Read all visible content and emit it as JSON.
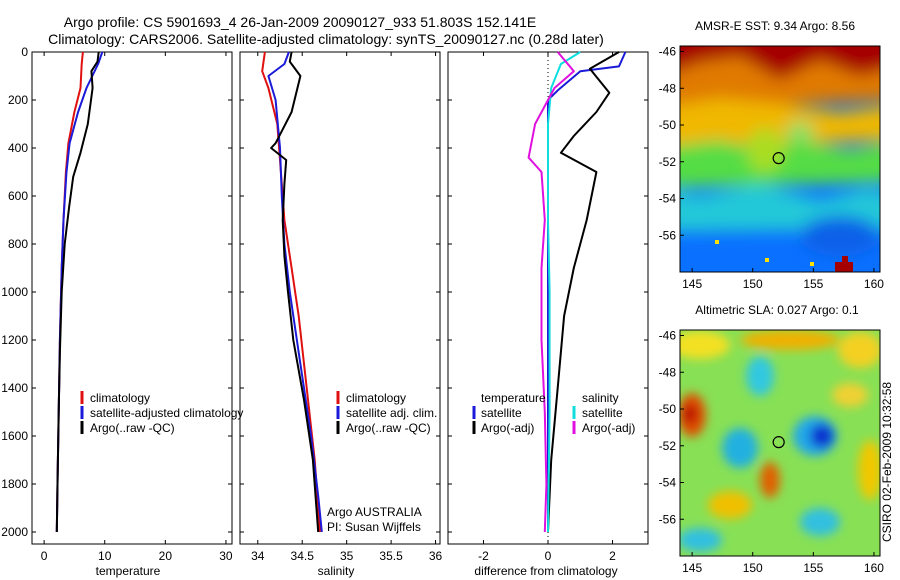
{
  "title_line1": "Argo profile: CS 5901693_4 26-Jan-2009 20090127_933 51.803S 152.141E",
  "title_line2": "Climatology: CARS2006. Satellite-adjusted climatology: synTS_20090127.nc (0.28d later)",
  "side_label": "CSIRO 02-Feb-2009 10:32:58",
  "colors": {
    "climatology": "#e01010",
    "satellite": "#1a1ad8",
    "argo": "#000000",
    "sat_sal": "#10dede",
    "argo_sal": "#e010e0"
  },
  "chart_data": [
    {
      "type": "line",
      "id": "temperature",
      "xlabel": "temperature",
      "xlim": [
        -2,
        31
      ],
      "ylim": [
        2050,
        0
      ],
      "xticks": [
        0,
        10,
        20,
        30
      ],
      "yticks": [
        0,
        200,
        400,
        600,
        800,
        1000,
        1200,
        1400,
        1600,
        1800,
        2000
      ],
      "legend": [
        "climatology",
        "satellite-adjusted climatology",
        "Argo(..raw -QC)"
      ],
      "series": [
        {
          "name": "climatology",
          "color": "#e01010",
          "points": [
            [
              6.4,
              0
            ],
            [
              6.2,
              50
            ],
            [
              6.0,
              150
            ],
            [
              5.0,
              250
            ],
            [
              4.0,
              380
            ],
            [
              3.6,
              500
            ],
            [
              3.2,
              700
            ],
            [
              2.9,
              900
            ],
            [
              2.6,
              1200
            ],
            [
              2.4,
              1500
            ],
            [
              2.2,
              1800
            ],
            [
              2.1,
              2000
            ]
          ]
        },
        {
          "name": "satellite-adjusted climatology",
          "color": "#1a1ad8",
          "points": [
            [
              9.6,
              0
            ],
            [
              8.9,
              50
            ],
            [
              7.0,
              150
            ],
            [
              5.6,
              250
            ],
            [
              4.2,
              380
            ],
            [
              3.7,
              500
            ],
            [
              3.2,
              700
            ],
            [
              2.9,
              900
            ],
            [
              2.6,
              1200
            ],
            [
              2.4,
              1500
            ],
            [
              2.2,
              1800
            ],
            [
              2.1,
              2000
            ]
          ]
        },
        {
          "name": "Argo(..raw -QC)",
          "color": "#000000",
          "points": [
            [
              9.0,
              0
            ],
            [
              8.8,
              40
            ],
            [
              7.8,
              80
            ],
            [
              8.0,
              150
            ],
            [
              7.2,
              300
            ],
            [
              6.0,
              420
            ],
            [
              4.8,
              520
            ],
            [
              4.1,
              650
            ],
            [
              3.4,
              800
            ],
            [
              2.9,
              1000
            ],
            [
              2.6,
              1250
            ],
            [
              2.4,
              1500
            ],
            [
              2.2,
              1800
            ],
            [
              2.1,
              2000
            ]
          ]
        }
      ]
    },
    {
      "type": "line",
      "id": "salinity",
      "xlabel": "salinity",
      "xlim": [
        33.8,
        36.05
      ],
      "ylim": [
        2050,
        0
      ],
      "xticks": [
        34,
        34.5,
        35,
        35.5,
        36
      ],
      "yticks": [
        0,
        200,
        400,
        600,
        800,
        1000,
        1200,
        1400,
        1600,
        1800,
        2000
      ],
      "legend": [
        "climatology",
        "satellite adj. clim.",
        "Argo(..raw -QC)"
      ],
      "annotations": [
        "Argo AUSTRALIA",
        "PI: Susan Wijffels"
      ],
      "series": [
        {
          "name": "climatology",
          "color": "#e01010",
          "points": [
            [
              34.08,
              0
            ],
            [
              34.05,
              80
            ],
            [
              34.12,
              150
            ],
            [
              34.22,
              300
            ],
            [
              34.26,
              500
            ],
            [
              34.3,
              700
            ],
            [
              34.38,
              900
            ],
            [
              34.46,
              1100
            ],
            [
              34.55,
              1400
            ],
            [
              34.64,
              1700
            ],
            [
              34.7,
              2000
            ]
          ]
        },
        {
          "name": "satellite adj. clim.",
          "color": "#1a1ad8",
          "points": [
            [
              34.35,
              0
            ],
            [
              34.3,
              50
            ],
            [
              34.12,
              100
            ],
            [
              34.2,
              200
            ],
            [
              34.25,
              400
            ],
            [
              34.27,
              600
            ],
            [
              34.3,
              800
            ],
            [
              34.36,
              1000
            ],
            [
              34.48,
              1300
            ],
            [
              34.6,
              1600
            ],
            [
              34.68,
              1850
            ],
            [
              34.72,
              2000
            ]
          ]
        },
        {
          "name": "Argo(..raw -QC)",
          "color": "#000000",
          "points": [
            [
              34.38,
              0
            ],
            [
              34.36,
              40
            ],
            [
              34.48,
              100
            ],
            [
              34.38,
              250
            ],
            [
              34.2,
              380
            ],
            [
              34.15,
              400
            ],
            [
              34.32,
              450
            ],
            [
              34.3,
              550
            ],
            [
              34.28,
              700
            ],
            [
              34.3,
              850
            ],
            [
              34.34,
              1000
            ],
            [
              34.4,
              1200
            ],
            [
              34.52,
              1450
            ],
            [
              34.62,
              1700
            ],
            [
              34.68,
              2000
            ]
          ]
        }
      ]
    },
    {
      "type": "line",
      "id": "difference",
      "xlabel": "difference from climatology",
      "xlim": [
        -3.1,
        3.1
      ],
      "ylim": [
        2050,
        0
      ],
      "xticks": [
        -2,
        0,
        2
      ],
      "yticks": [
        0,
        200,
        400,
        600,
        800,
        1000,
        1200,
        1400,
        1600,
        1800,
        2000
      ],
      "legend_groups": [
        {
          "heading": "temperature",
          "items": [
            "satellite",
            "Argo(-adj)"
          ]
        },
        {
          "heading": "salinity",
          "items": [
            "satellite",
            "Argo(-adj)"
          ]
        }
      ],
      "series": [
        {
          "name": "temperature satellite",
          "color": "#1a1ad8",
          "points": [
            [
              2.4,
              0
            ],
            [
              2.2,
              60
            ],
            [
              1.0,
              80
            ],
            [
              0.3,
              160
            ],
            [
              0.0,
              200
            ],
            [
              0.0,
              2000
            ]
          ]
        },
        {
          "name": "temperature Argo(-adj)",
          "color": "#000000",
          "points": [
            [
              2.2,
              0
            ],
            [
              1.3,
              70
            ],
            [
              1.9,
              170
            ],
            [
              1.5,
              250
            ],
            [
              0.8,
              350
            ],
            [
              0.4,
              420
            ],
            [
              1.5,
              500
            ],
            [
              1.2,
              700
            ],
            [
              0.8,
              900
            ],
            [
              0.5,
              1100
            ],
            [
              0.3,
              1400
            ],
            [
              0.1,
              1700
            ],
            [
              0.0,
              2000
            ]
          ]
        },
        {
          "name": "salinity satellite",
          "color": "#10dede",
          "points": [
            [
              1.0,
              0
            ],
            [
              0.4,
              50
            ],
            [
              0.1,
              150
            ],
            [
              0.0,
              300
            ],
            [
              0.0,
              700
            ],
            [
              0.05,
              1000
            ],
            [
              0.05,
              1500
            ],
            [
              0.0,
              2000
            ]
          ]
        },
        {
          "name": "salinity Argo(-adj)",
          "color": "#e010e0",
          "points": [
            [
              0.3,
              0
            ],
            [
              0.8,
              80
            ],
            [
              0.2,
              150
            ],
            [
              -0.4,
              300
            ],
            [
              -0.6,
              440
            ],
            [
              -0.2,
              500
            ],
            [
              -0.1,
              700
            ],
            [
              -0.2,
              900
            ],
            [
              -0.2,
              1200
            ],
            [
              -0.1,
              1500
            ],
            [
              -0.05,
              1800
            ],
            [
              -0.1,
              2000
            ]
          ]
        }
      ]
    },
    {
      "type": "heatmap",
      "id": "sst_map",
      "title": "AMSR-E SST: 9.34 Argo: 8.56",
      "xlim": [
        144,
        160.5
      ],
      "ylim": [
        -58,
        -45.7
      ],
      "xticks": [
        145,
        150,
        155,
        160
      ],
      "yticks": [
        -46,
        -48,
        -50,
        -52,
        -54,
        -56
      ],
      "argo_position": [
        152.141,
        -51.803
      ]
    },
    {
      "type": "heatmap",
      "id": "sla_map",
      "title": "Altimetric SLA: 0.027 Argo: 0.1",
      "xlim": [
        144,
        160.5
      ],
      "ylim": [
        -58,
        -45.7
      ],
      "xticks": [
        145,
        150,
        155,
        160
      ],
      "yticks": [
        -46,
        -48,
        -50,
        -52,
        -54,
        -56
      ],
      "argo_position": [
        152.141,
        -51.803
      ]
    }
  ]
}
